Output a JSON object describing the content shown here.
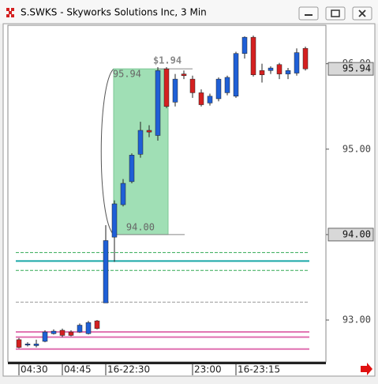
{
  "chart_data": {
    "type": "candlestick",
    "title": "S.SWKS - Skyworks Solutions Inc, 3 Min",
    "categories": [
      "04:30",
      null,
      null,
      null,
      null,
      "04:45",
      null,
      null,
      null,
      null,
      "16-22:30",
      null,
      null,
      null,
      null,
      null,
      null,
      null,
      null,
      null,
      "23:00",
      null,
      null,
      null,
      null,
      "16-23:15",
      null,
      null,
      null,
      null,
      null,
      null,
      null,
      null
    ],
    "open": [
      92.77,
      92.71,
      92.7,
      92.75,
      92.84,
      92.88,
      92.86,
      92.86,
      92.84,
      92.99,
      93.2,
      93.97,
      94.35,
      94.62,
      94.94,
      95.22,
      95.16,
      95.94,
      95.55,
      95.88,
      95.82,
      95.66,
      95.54,
      95.59,
      95.66,
      95.62,
      96.12,
      96.31,
      95.92,
      95.92,
      95.99,
      95.88,
      95.89,
      96.18
    ],
    "high": [
      92.79,
      92.74,
      92.77,
      92.88,
      92.89,
      92.9,
      92.88,
      92.96,
      92.99,
      93.0,
      94.11,
      94.4,
      94.65,
      94.95,
      95.32,
      95.28,
      95.96,
      95.96,
      95.88,
      95.92,
      95.86,
      95.7,
      95.65,
      95.84,
      95.86,
      96.14,
      96.32,
      96.33,
      96.0,
      95.97,
      96.01,
      95.95,
      96.18,
      96.2
    ],
    "low": [
      92.67,
      92.69,
      92.68,
      92.74,
      92.83,
      92.8,
      92.81,
      92.85,
      92.83,
      92.89,
      93.2,
      93.68,
      94.33,
      94.6,
      94.9,
      95.14,
      95.1,
      95.48,
      95.5,
      95.82,
      95.6,
      95.5,
      95.51,
      95.56,
      95.63,
      95.6,
      96.06,
      95.85,
      95.78,
      95.88,
      95.82,
      95.82,
      95.86,
      95.92
    ],
    "close": [
      92.68,
      92.72,
      92.72,
      92.86,
      92.87,
      92.82,
      92.82,
      92.94,
      92.97,
      92.9,
      93.93,
      94.36,
      94.6,
      94.93,
      95.22,
      95.2,
      95.92,
      95.5,
      95.82,
      95.86,
      95.66,
      95.52,
      95.62,
      95.82,
      95.84,
      96.12,
      96.31,
      95.87,
      95.87,
      95.95,
      95.88,
      95.92,
      96.13,
      95.94
    ],
    "up_color": "#1f5fd6",
    "down_color": "#d42020",
    "ylim": [
      92.51,
      96.45
    ],
    "yticks": [
      {
        "value": 93,
        "label": "93.00"
      },
      {
        "value": 94,
        "label": "94.00"
      },
      {
        "value": 95,
        "label": "95.00"
      },
      {
        "value": 96,
        "label": "96.00"
      }
    ],
    "price_markers": [
      {
        "value": 95.94,
        "label": "95.94"
      },
      {
        "value": 94,
        "label": "94.00"
      }
    ],
    "measure": {
      "top": {
        "value": 95.94,
        "label": "95.94"
      },
      "bottom": {
        "value": 94,
        "label": "94.00"
      },
      "change": "$1.94",
      "color": "#8fd9a8"
    },
    "levels": [
      {
        "value": 93.79,
        "color": "#33aa55",
        "dashed": true
      },
      {
        "value": 93.69,
        "color": "#1aa8a8",
        "dashed": false
      },
      {
        "value": 93.58,
        "color": "#33aa55",
        "dashed": true
      },
      {
        "value": 93.21,
        "color": "#999999",
        "dashed": true
      },
      {
        "value": 92.86,
        "color": "#e070b0",
        "dashed": false
      },
      {
        "value": 92.8,
        "color": "#e070b0",
        "dashed": false
      },
      {
        "value": 92.66,
        "color": "#e070b0",
        "dashed": false
      }
    ]
  }
}
